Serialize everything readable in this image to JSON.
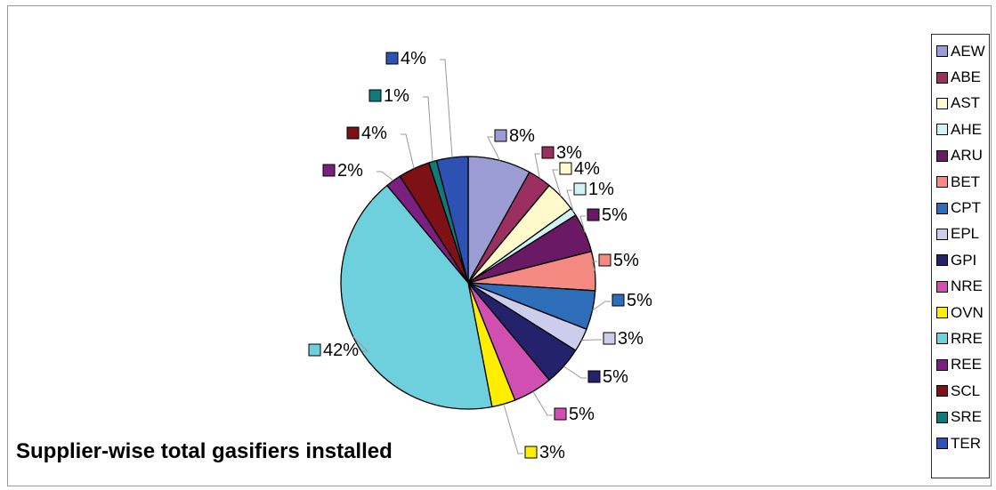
{
  "chart_data": {
    "type": "pie",
    "title": "Supplier-wise total gasifiers installed",
    "series": [
      {
        "name": "AEW",
        "value": 8,
        "label": "8%",
        "color": "#9d9dd6"
      },
      {
        "name": "ABE",
        "value": 3,
        "label": "3%",
        "color": "#9b3060"
      },
      {
        "name": "AST",
        "value": 4,
        "label": "4%",
        "color": "#fffacc"
      },
      {
        "name": "AHE",
        "value": 1,
        "label": "1%",
        "color": "#d2f2f7"
      },
      {
        "name": "ARU",
        "value": 5,
        "label": "5%",
        "color": "#6a1a64"
      },
      {
        "name": "BET",
        "value": 5,
        "label": "5%",
        "color": "#f48a82"
      },
      {
        "name": "CPT",
        "value": 5,
        "label": "5%",
        "color": "#2e6db7"
      },
      {
        "name": "EPL",
        "value": 3,
        "label": "3%",
        "color": "#ccccec"
      },
      {
        "name": "GPI",
        "value": 5,
        "label": "5%",
        "color": "#23226a"
      },
      {
        "name": "NRE",
        "value": 5,
        "label": "5%",
        "color": "#d04fb1"
      },
      {
        "name": "OVN",
        "value": 3,
        "label": "3%",
        "color": "#ffee00"
      },
      {
        "name": "RRE",
        "value": 42,
        "label": "42%",
        "color": "#6fd0dd"
      },
      {
        "name": "REE",
        "value": 2,
        "label": "2%",
        "color": "#7a2080"
      },
      {
        "name": "SCL",
        "value": 4,
        "label": "4%",
        "color": "#7d1116"
      },
      {
        "name": "SRE",
        "value": 1,
        "label": "1%",
        "color": "#0e7a7a"
      },
      {
        "name": "TER",
        "value": 4,
        "label": "4%",
        "color": "#2d52b3"
      }
    ],
    "legend_position": "right"
  }
}
